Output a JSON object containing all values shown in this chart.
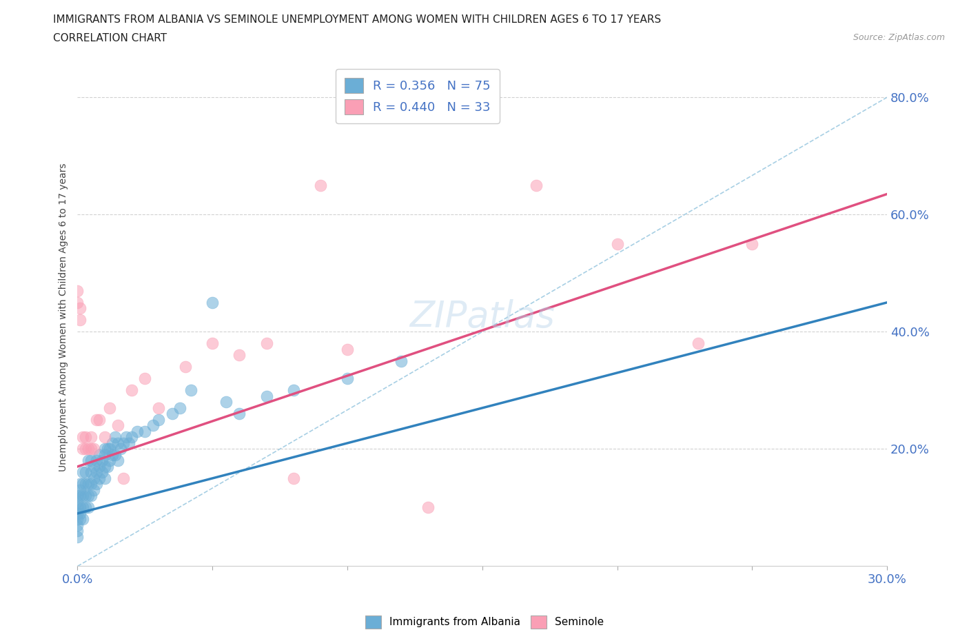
{
  "title_line1": "IMMIGRANTS FROM ALBANIA VS SEMINOLE UNEMPLOYMENT AMONG WOMEN WITH CHILDREN AGES 6 TO 17 YEARS",
  "title_line2": "CORRELATION CHART",
  "source_text": "Source: ZipAtlas.com",
  "ylabel": "Unemployment Among Women with Children Ages 6 to 17 years",
  "xlim": [
    0.0,
    0.3
  ],
  "ylim": [
    0.0,
    0.85
  ],
  "y_ticks": [
    0.0,
    0.2,
    0.4,
    0.6,
    0.8
  ],
  "y_tick_labels": [
    "",
    "20.0%",
    "40.0%",
    "60.0%",
    "80.0%"
  ],
  "x_ticks": [
    0.0,
    0.05,
    0.1,
    0.15,
    0.2,
    0.25,
    0.3
  ],
  "x_tick_labels": [
    "0.0%",
    "",
    "",
    "",
    "",
    "",
    "30.0%"
  ],
  "r_albania": 0.356,
  "n_albania": 75,
  "r_seminole": 0.44,
  "n_seminole": 33,
  "color_albania": "#6baed6",
  "color_seminole": "#fa9fb5",
  "regression_color_albania": "#3182bd",
  "regression_color_seminole": "#e05080",
  "ref_line_color": "#9ecae1",
  "legend_label_albania": "Immigrants from Albania",
  "legend_label_seminole": "Seminole",
  "watermark": "ZIPatlas",
  "grid_color": "#cccccc",
  "title_color": "#222222",
  "tick_color": "#4472c4",
  "ylabel_color": "#444444",
  "source_color": "#999999",
  "albania_x": [
    0.0,
    0.0,
    0.0,
    0.0,
    0.0,
    0.0,
    0.0,
    0.0,
    0.001,
    0.001,
    0.001,
    0.001,
    0.001,
    0.001,
    0.002,
    0.002,
    0.002,
    0.002,
    0.002,
    0.003,
    0.003,
    0.003,
    0.003,
    0.004,
    0.004,
    0.004,
    0.004,
    0.005,
    0.005,
    0.005,
    0.005,
    0.006,
    0.006,
    0.006,
    0.007,
    0.007,
    0.007,
    0.008,
    0.008,
    0.008,
    0.009,
    0.009,
    0.01,
    0.01,
    0.01,
    0.01,
    0.011,
    0.011,
    0.012,
    0.012,
    0.013,
    0.013,
    0.014,
    0.014,
    0.015,
    0.015,
    0.016,
    0.017,
    0.018,
    0.019,
    0.02,
    0.022,
    0.025,
    0.028,
    0.03,
    0.035,
    0.038,
    0.042,
    0.05,
    0.055,
    0.06,
    0.07,
    0.08,
    0.1,
    0.12
  ],
  "albania_y": [
    0.05,
    0.06,
    0.07,
    0.08,
    0.09,
    0.1,
    0.11,
    0.12,
    0.08,
    0.09,
    0.1,
    0.12,
    0.13,
    0.14,
    0.08,
    0.1,
    0.12,
    0.14,
    0.16,
    0.1,
    0.12,
    0.14,
    0.16,
    0.1,
    0.12,
    0.14,
    0.18,
    0.12,
    0.14,
    0.16,
    0.18,
    0.13,
    0.15,
    0.17,
    0.14,
    0.16,
    0.18,
    0.15,
    0.17,
    0.19,
    0.16,
    0.18,
    0.15,
    0.17,
    0.19,
    0.2,
    0.17,
    0.2,
    0.18,
    0.2,
    0.19,
    0.21,
    0.19,
    0.22,
    0.18,
    0.21,
    0.2,
    0.21,
    0.22,
    0.21,
    0.22,
    0.23,
    0.23,
    0.24,
    0.25,
    0.26,
    0.27,
    0.3,
    0.45,
    0.28,
    0.26,
    0.29,
    0.3,
    0.32,
    0.35
  ],
  "seminole_x": [
    0.0,
    0.0,
    0.001,
    0.001,
    0.002,
    0.002,
    0.003,
    0.003,
    0.004,
    0.005,
    0.005,
    0.006,
    0.007,
    0.008,
    0.01,
    0.012,
    0.015,
    0.017,
    0.02,
    0.025,
    0.03,
    0.04,
    0.05,
    0.06,
    0.07,
    0.08,
    0.09,
    0.1,
    0.13,
    0.17,
    0.2,
    0.23,
    0.25
  ],
  "seminole_y": [
    0.45,
    0.47,
    0.42,
    0.44,
    0.2,
    0.22,
    0.2,
    0.22,
    0.2,
    0.2,
    0.22,
    0.2,
    0.25,
    0.25,
    0.22,
    0.27,
    0.24,
    0.15,
    0.3,
    0.32,
    0.27,
    0.34,
    0.38,
    0.36,
    0.38,
    0.15,
    0.65,
    0.37,
    0.1,
    0.65,
    0.55,
    0.38,
    0.55
  ]
}
